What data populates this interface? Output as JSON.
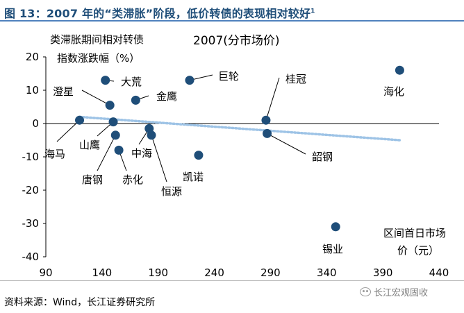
{
  "header": {
    "title": "图 13：2007 年的“类滞胀”阶段，低价转债的表现相对较好",
    "title_sup": "1"
  },
  "footer": {
    "source": "资料来源：Wind，长江证券研究所",
    "watermark": "长江宏观固收",
    "watermark_icon": "wechat-icon"
  },
  "chart_data": {
    "type": "scatter",
    "title": "2007(分市场价)",
    "ylabel_lines": [
      "类滞胀期间相对转债",
      "指数涨跌幅（%）"
    ],
    "xlabel_lines": [
      "区间首日市场",
      "价（元）"
    ],
    "xlim": [
      90,
      440
    ],
    "ylim": [
      -40,
      20
    ],
    "xticks": [
      90,
      140,
      190,
      240,
      290,
      340,
      390,
      440
    ],
    "yticks": [
      20,
      10,
      0,
      -10,
      -20,
      -30,
      -40
    ],
    "point_color": "#1f4e79",
    "trend_color": "#9dc3e6",
    "points": [
      {
        "name": "海化",
        "x": 405,
        "y": 16
      },
      {
        "name": "大荒",
        "x": 143,
        "y": 13
      },
      {
        "name": "巨轮",
        "x": 218,
        "y": 13
      },
      {
        "name": "金鹰",
        "x": 170,
        "y": 7
      },
      {
        "name": "澄星",
        "x": 147,
        "y": 5.5
      },
      {
        "name": "桂冠",
        "x": 286,
        "y": 1
      },
      {
        "name": "海马",
        "x": 120,
        "y": 1
      },
      {
        "name": "山鹰",
        "x": 150,
        "y": 0.5
      },
      {
        "name": "中海",
        "x": 182,
        "y": -1.5
      },
      {
        "name": "恒源",
        "x": 184,
        "y": -3.5
      },
      {
        "name": "韶钢",
        "x": 287,
        "y": -3
      },
      {
        "name": "唐钢",
        "x": 152,
        "y": -3.5
      },
      {
        "name": "赤化",
        "x": 155,
        "y": -8
      },
      {
        "name": "凯诺",
        "x": 226,
        "y": -9.5
      },
      {
        "name": "锡业",
        "x": 348,
        "y": -31
      }
    ],
    "trendline": {
      "x": [
        120,
        405
      ],
      "y": [
        2,
        -5
      ]
    }
  }
}
